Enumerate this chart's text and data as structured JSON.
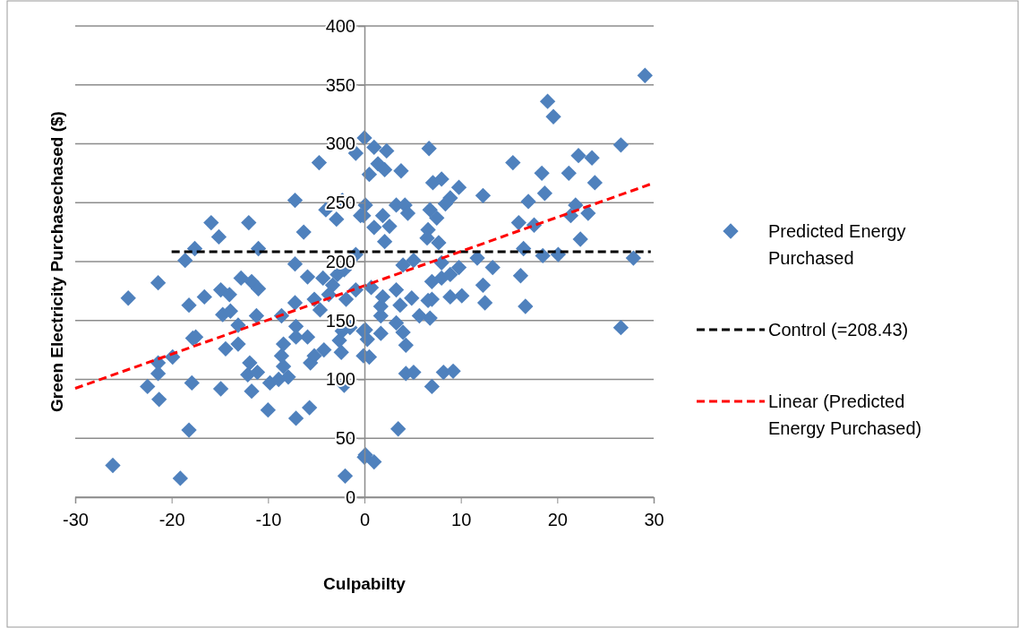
{
  "chart_data": {
    "type": "scatter",
    "xlabel": "Culpabilty",
    "ylabel": "Green Electricity Purchasechased ($)",
    "xlim": [
      -30,
      30
    ],
    "ylim": [
      0,
      400
    ],
    "xticks": [
      -30,
      -20,
      -10,
      0,
      10,
      20,
      30
    ],
    "yticks": [
      0,
      50,
      100,
      150,
      200,
      250,
      300,
      350,
      400
    ],
    "grid": "y",
    "legend": "right",
    "series": [
      {
        "name": "Predicted Energy Purchased",
        "type": "scatter",
        "color": "#4f81bd",
        "marker": "diamond",
        "x": [
          -26.1,
          -24.5,
          -21.4,
          -22.5,
          -21.3,
          -21.4,
          -21.4,
          -19.9,
          -19.1,
          -18.2,
          -17.9,
          -18.2,
          -17.8,
          -17.5,
          -16.6,
          -14.9,
          -14.0,
          -14.7,
          -13.9,
          -14.4,
          -13.1,
          -14.9,
          -13.1,
          -12.8,
          -11.7,
          -11.0,
          -11.2,
          -11.9,
          -12.1,
          -11.1,
          -11.7,
          -10.0,
          -9.8,
          -8.9,
          -8.4,
          -8.6,
          -8.4,
          -7.9,
          -8.6,
          -7.2,
          -7.1,
          -7.1,
          -7.1,
          -5.7,
          -5.9,
          -5.6,
          -5.2,
          -4.2,
          -4.6,
          -2.1,
          -2.0,
          -2.4,
          -2.6,
          -2.3,
          -1.5,
          -0.1,
          0.0,
          -0.1,
          -18.6,
          -7.2,
          -5.9,
          -4.3,
          -3.3,
          -2.8,
          -2.1,
          -0.9,
          -1.9,
          -5.2,
          -3.7,
          -17.6,
          -15.9,
          -15.1,
          -12.0,
          -11.0,
          -7.2,
          -6.3,
          -4.7,
          -4.0,
          -2.9,
          -2.3,
          -0.9,
          -0.9,
          -0.1,
          0.5,
          0.0,
          1.0,
          2.3,
          1.4,
          2.1,
          3.8,
          6.7,
          7.1,
          8.0,
          9.8,
          8.9,
          8.4,
          12.3,
          0.1,
          -0.4,
          1.9,
          1.0,
          2.6,
          3.3,
          4.2,
          4.5,
          2.1,
          6.6,
          6.8,
          7.5,
          6.5,
          7.7,
          5.1,
          11.7,
          13.3,
          15.4,
          18.4,
          19.0,
          19.6,
          21.2,
          22.2,
          23.6,
          26.6,
          29.1,
          23.9,
          17.0,
          18.7,
          21.9,
          21.4,
          23.2,
          16.0,
          17.6,
          22.4,
          16.5,
          18.5,
          20.1,
          27.9,
          16.2,
          12.3,
          12.5,
          16.7,
          26.6,
          8.9,
          10.1,
          7.0,
          6.8,
          5.7,
          4.3,
          4.3,
          5.1,
          8.2,
          9.2,
          7.0,
          3.5,
          0.1,
          1.0,
          0.5,
          0.3,
          0.1,
          1.7,
          3.3,
          4.0,
          3.7,
          1.7,
          1.7,
          1.9,
          0.7,
          3.3,
          4.9,
          7.0,
          8.0,
          8.9,
          9.8,
          8.0,
          6.6,
          4.0
        ],
        "values": [
          27,
          169,
          182,
          94,
          83,
          114,
          105,
          119,
          16,
          57,
          97,
          163,
          135,
          136,
          170,
          176,
          172,
          155,
          158,
          126,
          130,
          92,
          146,
          186,
          183,
          177,
          154,
          114,
          104,
          106,
          90,
          74,
          97,
          100,
          111,
          120,
          130,
          102,
          154,
          165,
          145,
          136,
          67,
          76,
          136,
          114,
          120,
          125,
          159,
          95,
          18,
          123,
          133,
          141,
          144,
          141,
          34,
          120,
          201,
          198,
          187,
          186,
          180,
          189,
          193,
          176,
          168,
          168,
          172,
          211,
          233,
          221,
          233,
          211,
          252,
          225,
          284,
          244,
          236,
          252,
          206,
          292,
          239,
          274,
          305,
          297,
          294,
          283,
          278,
          277,
          296,
          267,
          270,
          263,
          254,
          249,
          256,
          248,
          239,
          239,
          229,
          230,
          248,
          248,
          241,
          217,
          227,
          244,
          237,
          220,
          216,
          201,
          203,
          195,
          284,
          275,
          336,
          323,
          275,
          290,
          288,
          299,
          358,
          267,
          251,
          258,
          248,
          239,
          241,
          233,
          231,
          219,
          211,
          205,
          206,
          203,
          188,
          180,
          165,
          162,
          144,
          170,
          171,
          168,
          152,
          154,
          129,
          105,
          106,
          106,
          107,
          94,
          58,
          36,
          30,
          119,
          134,
          142,
          139,
          148,
          140,
          163,
          154,
          162,
          170,
          178,
          176,
          169,
          183,
          186,
          189,
          195,
          199,
          167,
          197
        ]
      },
      {
        "name": "Control (=208.43)",
        "type": "line",
        "color": "#000000",
        "line_style": "dashed",
        "x": [
          -20,
          29.7
        ],
        "values": [
          208.43,
          208.43
        ]
      },
      {
        "name": "Linear (Predicted Energy Purchased)",
        "type": "line",
        "color": "#ff0000",
        "line_style": "dashed",
        "x": [
          -30,
          30
        ],
        "values": [
          92.4,
          266.7
        ]
      }
    ]
  }
}
